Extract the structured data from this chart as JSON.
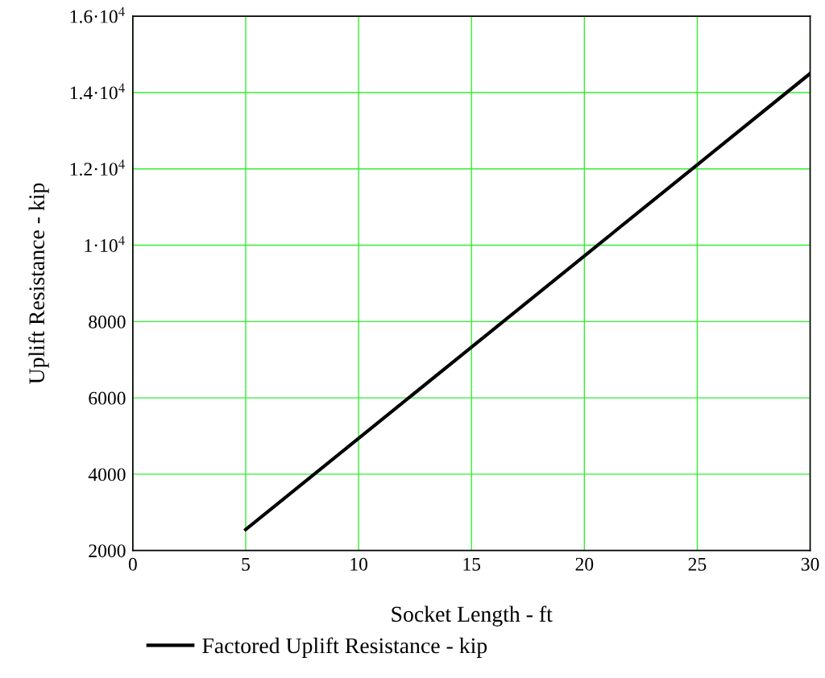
{
  "chart_data": {
    "type": "line",
    "xlabel": "Socket Length - ft",
    "ylabel": "Uplift Resistance - kip",
    "x": [
      5,
      10,
      15,
      20,
      25,
      30
    ],
    "series": [
      {
        "name": "Factored Uplift Resistance - kip",
        "color": "#000000",
        "values": [
          2550,
          4940,
          7330,
          9720,
          12110,
          14500
        ]
      }
    ],
    "xlim": [
      0,
      30
    ],
    "xticks": [
      0,
      5,
      10,
      15,
      20,
      25,
      30
    ],
    "ylim": [
      2000,
      16000
    ],
    "yticks": [
      2000,
      4000,
      6000,
      8000,
      {
        "value": 10000,
        "label": "1·10$^{4}$"
      },
      {
        "value": 12000,
        "label": "1.2·10$^{4}$"
      },
      {
        "value": 14000,
        "label": "1.4·10$^{4}$"
      },
      {
        "value": 16000,
        "label": "1.6·10$^{4}$"
      }
    ],
    "grid": true,
    "legend": "bottom",
    "marker": "none",
    "line_style": "solid"
  }
}
